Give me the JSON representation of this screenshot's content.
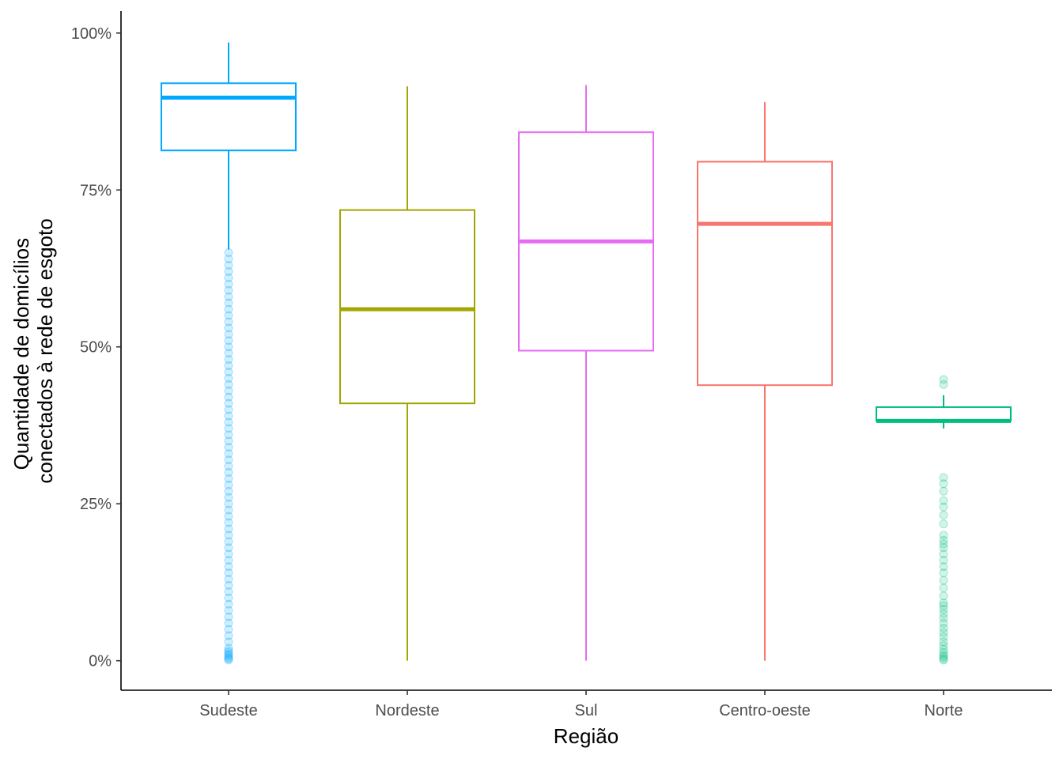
{
  "chart_data": {
    "type": "boxplot",
    "title": "",
    "xlabel": "Região",
    "ylabel_lines": [
      "Quantidade de domicílios",
      "conectados à rede de esgoto"
    ],
    "ylim": [
      -0.047,
      1.035
    ],
    "yticks": [
      {
        "value": 0,
        "label": "0%"
      },
      {
        "value": 0.25,
        "label": "25%"
      },
      {
        "value": 0.5,
        "label": "50%"
      },
      {
        "value": 0.75,
        "label": "75%"
      },
      {
        "value": 1.0,
        "label": "100%"
      }
    ],
    "grid": false,
    "legend": "none",
    "categories": [
      "Sudeste",
      "Nordeste",
      "Sul",
      "Centro-oeste",
      "Norte"
    ],
    "boxes": [
      {
        "category": "Sudeste",
        "color": "#00A9FF",
        "whisker_low": 0.655,
        "q1": 0.813,
        "median": 0.897,
        "q3": 0.92,
        "whisker_high": 0.985,
        "outliers": [
          0.001,
          0.003,
          0.005,
          0.008,
          0.01,
          0.013,
          0.016,
          0.02,
          0.03,
          0.04,
          0.05,
          0.06,
          0.07,
          0.08,
          0.09,
          0.1,
          0.11,
          0.12,
          0.13,
          0.14,
          0.15,
          0.16,
          0.17,
          0.18,
          0.19,
          0.2,
          0.21,
          0.22,
          0.23,
          0.24,
          0.25,
          0.26,
          0.27,
          0.28,
          0.29,
          0.3,
          0.31,
          0.32,
          0.33,
          0.34,
          0.35,
          0.36,
          0.37,
          0.38,
          0.39,
          0.4,
          0.41,
          0.42,
          0.43,
          0.44,
          0.45,
          0.46,
          0.47,
          0.48,
          0.49,
          0.5,
          0.51,
          0.52,
          0.53,
          0.54,
          0.55,
          0.56,
          0.57,
          0.58,
          0.59,
          0.6,
          0.61,
          0.62,
          0.63,
          0.64,
          0.65
        ]
      },
      {
        "category": "Nordeste",
        "color": "#A3A500",
        "whisker_low": 0.0,
        "q1": 0.41,
        "median": 0.56,
        "q3": 0.718,
        "whisker_high": 0.915,
        "outliers": []
      },
      {
        "category": "Sul",
        "color": "#E76BF3",
        "whisker_low": 0.0,
        "q1": 0.494,
        "median": 0.668,
        "q3": 0.842,
        "whisker_high": 0.917,
        "outliers": []
      },
      {
        "category": "Centro-oeste",
        "color": "#F8766D",
        "whisker_low": 0.0,
        "q1": 0.439,
        "median": 0.696,
        "q3": 0.795,
        "whisker_high": 0.89,
        "outliers": []
      },
      {
        "category": "Norte",
        "color": "#00BF7D",
        "whisker_low": 0.37,
        "q1": 0.382,
        "median": 0.382,
        "q3": 0.404,
        "whisker_high": 0.423,
        "outliers": [
          0.44,
          0.448,
          0.292,
          0.282,
          0.27,
          0.255,
          0.245,
          0.232,
          0.218,
          0.2,
          0.192,
          0.186,
          0.18,
          0.17,
          0.16,
          0.15,
          0.14,
          0.128,
          0.116,
          0.103,
          0.092,
          0.088,
          0.082,
          0.075,
          0.068,
          0.06,
          0.052,
          0.045,
          0.038,
          0.03,
          0.024,
          0.018,
          0.013,
          0.009,
          0.006,
          0.003,
          0.001
        ]
      }
    ]
  }
}
